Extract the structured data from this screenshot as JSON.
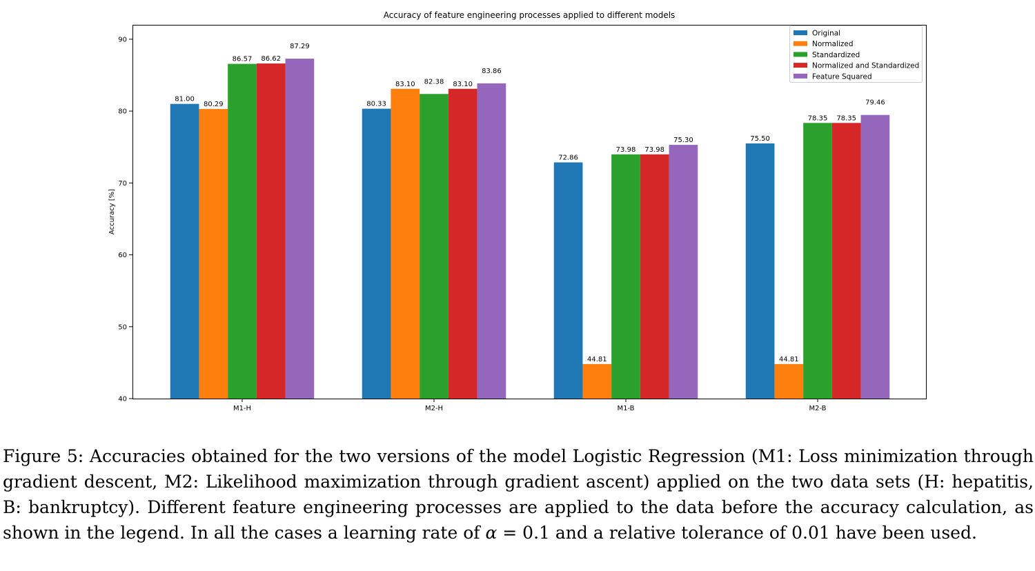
{
  "chart_data": {
    "type": "bar",
    "title": "Accuracy of feature engineering processes applied to different models",
    "xlabel": "",
    "ylabel": "Accuracy [%]",
    "ylim": [
      40,
      92
    ],
    "yticks": [
      40,
      50,
      60,
      70,
      80,
      90
    ],
    "categories": [
      "M1-H",
      "M2-H",
      "M1-B",
      "M2-B"
    ],
    "legend_position": "upper right",
    "series": [
      {
        "name": "Original",
        "color": "#1f77b4",
        "values": [
          81.0,
          80.33,
          72.86,
          75.5
        ],
        "labels": [
          "81.00",
          "80.33",
          "72.86",
          "75.50"
        ]
      },
      {
        "name": "Normalized",
        "color": "#ff7f0e",
        "values": [
          80.29,
          83.1,
          44.81,
          44.81
        ],
        "labels": [
          "80.29",
          "83.10",
          "44.81",
          "44.81"
        ]
      },
      {
        "name": "Standardized",
        "color": "#2ca02c",
        "values": [
          86.57,
          82.38,
          73.98,
          78.35
        ],
        "labels": [
          "86.57",
          "82.38",
          "73.98",
          "78.35"
        ]
      },
      {
        "name": "Normalized and Standardized",
        "color": "#d62728",
        "values": [
          86.62,
          83.1,
          73.98,
          78.35
        ],
        "labels": [
          "86.62",
          "83.10",
          "73.98",
          "78.35"
        ]
      },
      {
        "name": "Feature Squared",
        "color": "#9467bd",
        "values": [
          87.29,
          83.86,
          75.3,
          79.46
        ],
        "labels": [
          "87.29",
          "83.86",
          "75.30",
          "79.46"
        ]
      }
    ]
  },
  "caption": {
    "prefix": "Figure 5: Accuracies obtained for the two versions of the model Logistic Regression (M1: Loss minimization through gradient descent, M2: Likelihood maximization through gradient ascent) applied on the two data sets (H: hepatitis, B: bankruptcy). Different feature engineering processes are applied to the data before the accuracy calculation, as shown in the legend. In all the cases a learning rate of ",
    "alpha": "α",
    "equals": " = 0.1",
    "suffix": " and a relative tolerance of 0.01 have been used."
  }
}
